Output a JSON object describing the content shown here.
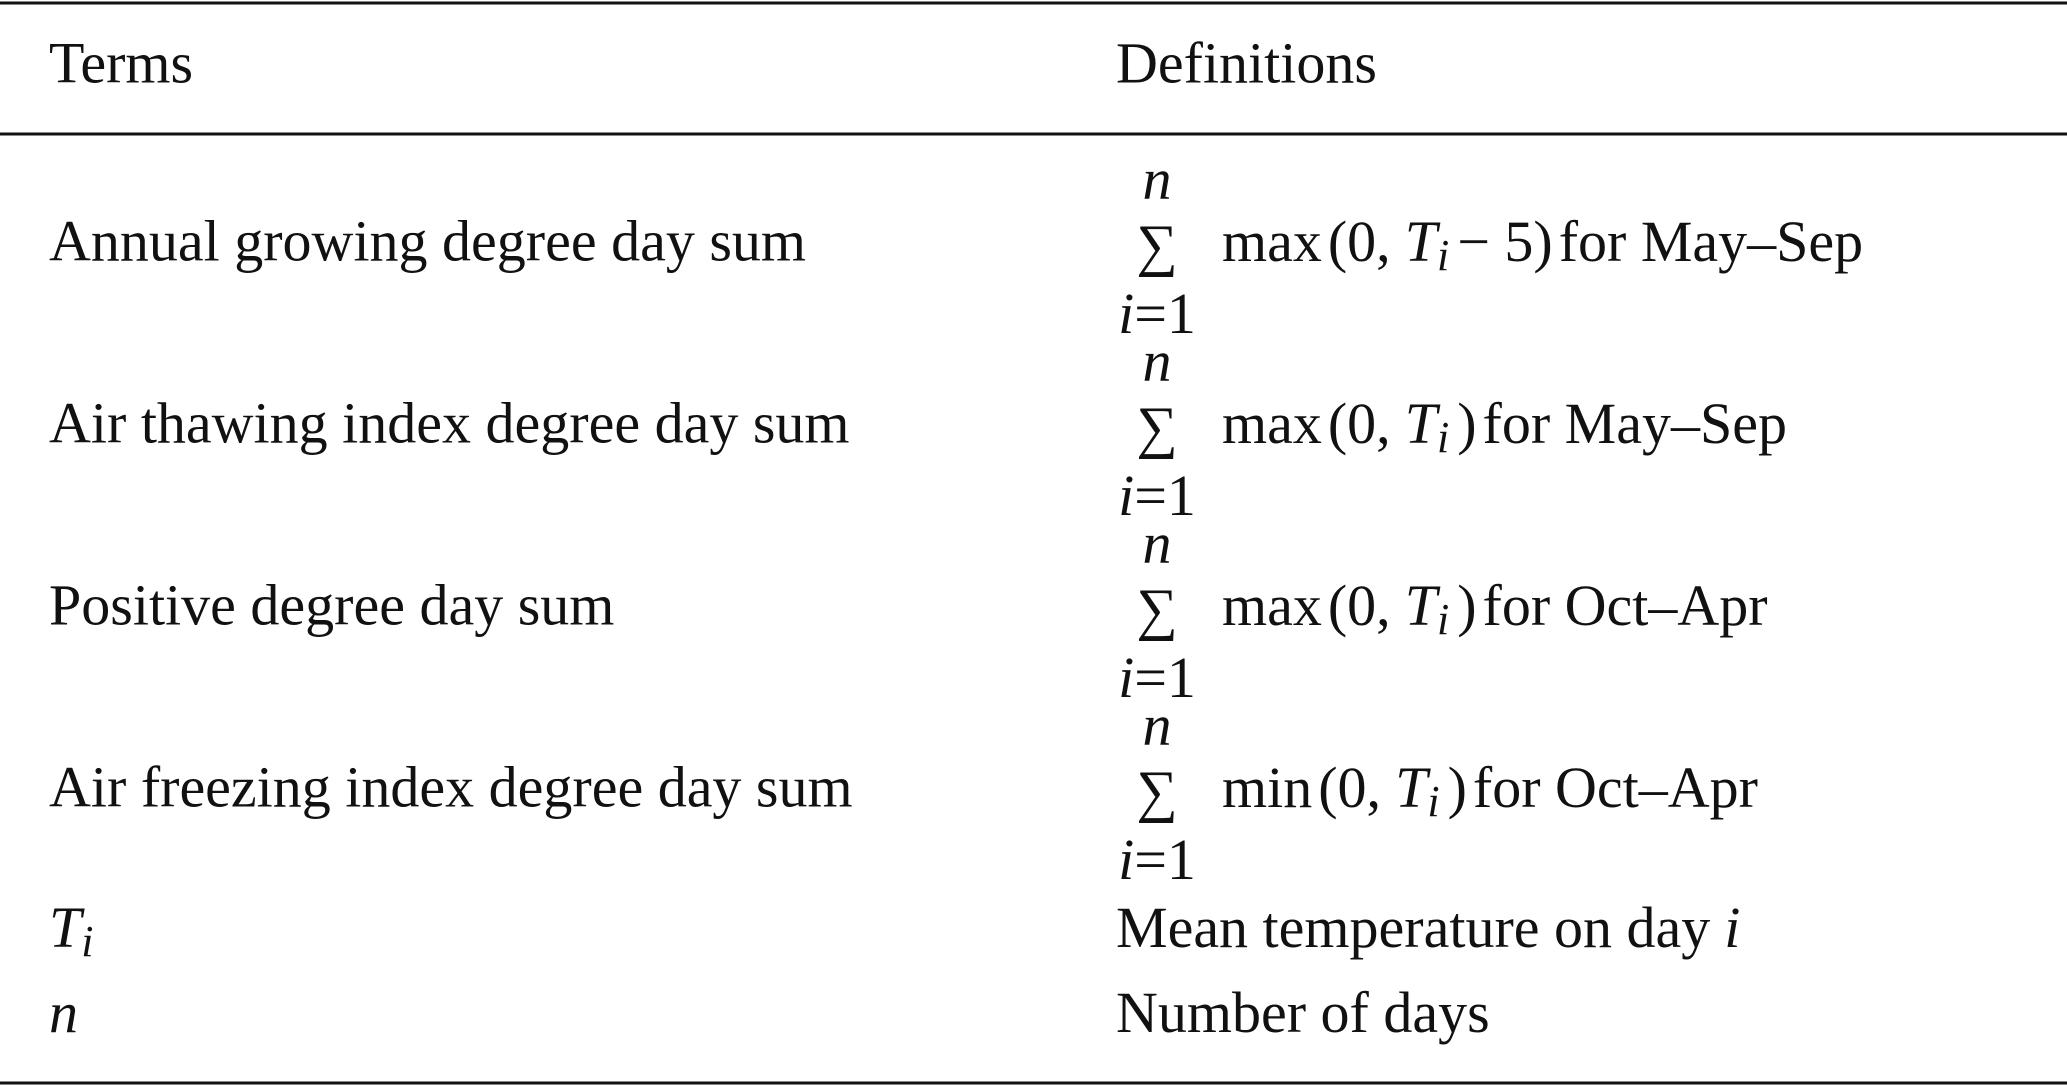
{
  "table": {
    "header": [
      "Terms",
      "Definitions"
    ],
    "rows": [
      {
        "term": {
          "text": "Annual growing degree day sum"
        },
        "definition": {
          "sum_upper": "n",
          "sum_symbol": "∑",
          "sum_index": "i",
          "sum_start": "=1",
          "func": "max",
          "args_open": "(0,",
          "var": "T",
          "sub": "i",
          "rest": "− 5)",
          "range": "for May–Sep"
        }
      },
      {
        "term": {
          "text": "Air thawing index degree day sum"
        },
        "definition": {
          "sum_upper": "n",
          "sum_symbol": "∑",
          "sum_index": "i",
          "sum_start": "=1",
          "func": "max",
          "args_open": "(0,",
          "var": "T",
          "sub": "i",
          "rest": ")",
          "range": "for May–Sep"
        }
      },
      {
        "term": {
          "text": "Positive degree day sum"
        },
        "definition": {
          "sum_upper": "n",
          "sum_symbol": "∑",
          "sum_index": "i",
          "sum_start": "=1",
          "func": "max",
          "args_open": "(0,",
          "var": "T",
          "sub": "i",
          "rest": ")",
          "range": "for Oct–Apr"
        }
      },
      {
        "term": {
          "text": "Air freezing index degree day sum"
        },
        "definition": {
          "sum_upper": "n",
          "sum_symbol": "∑",
          "sum_index": "i",
          "sum_start": "=1",
          "func": "min",
          "args_open": "(0,",
          "var": "T",
          "sub": "i",
          "rest": ")",
          "range": "for Oct–Apr"
        }
      },
      {
        "term": {
          "var": "T",
          "sub": "i"
        },
        "definition": {
          "text": "Mean temperature on day",
          "var": "i"
        }
      },
      {
        "term": {
          "var": "n"
        },
        "definition": {
          "text": "Number of days"
        }
      }
    ]
  }
}
